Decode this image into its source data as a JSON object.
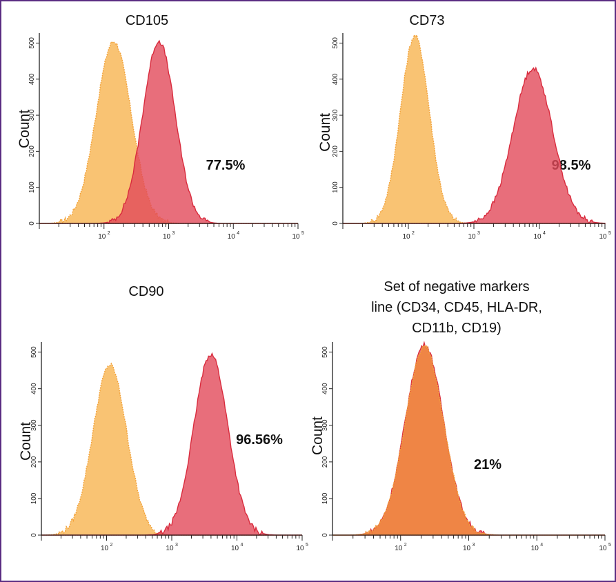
{
  "chart_data": [
    {
      "type": "area",
      "title": "CD105",
      "ylabel": "Count",
      "xscale": "log",
      "xlim": [
        10,
        100000
      ],
      "ylim": [
        0,
        520
      ],
      "x_ticks": [
        "10",
        "2",
        "10",
        "3",
        "10",
        "4",
        "10",
        "5"
      ],
      "y_ticks": [
        "0",
        "100",
        "200",
        "300",
        "400",
        "500"
      ],
      "annotation": "77.5%",
      "series": [
        {
          "role": "control",
          "color": "#f8b95a",
          "center_log": 2.15,
          "width": 0.27,
          "peak": 505
        },
        {
          "role": "stained",
          "color": "#e24a5a",
          "center_log": 2.85,
          "width": 0.25,
          "peak": 505
        }
      ]
    },
    {
      "type": "area",
      "title": "CD73",
      "ylabel": "Count",
      "xscale": "log",
      "xlim": [
        10,
        100000
      ],
      "ylim": [
        0,
        520
      ],
      "x_ticks": [
        "10",
        "2",
        "10",
        "3",
        "10",
        "4",
        "10",
        "5"
      ],
      "y_ticks": [
        "0",
        "100",
        "200",
        "300",
        "400",
        "500"
      ],
      "annotation": "98.5%",
      "series": [
        {
          "role": "control",
          "color": "#f8b95a",
          "center_log": 2.1,
          "width": 0.22,
          "peak": 520
        },
        {
          "role": "stained",
          "color": "#e24a5a",
          "center_log": 3.9,
          "width": 0.3,
          "peak": 430
        }
      ]
    },
    {
      "type": "area",
      "title": "CD90",
      "ylabel": "Count",
      "xscale": "log",
      "xlim": [
        10,
        100000
      ],
      "ylim": [
        0,
        520
      ],
      "x_ticks": [
        "10",
        "2",
        "10",
        "3",
        "10",
        "4",
        "10",
        "5"
      ],
      "y_ticks": [
        "0",
        "100",
        "200",
        "300",
        "400",
        "500"
      ],
      "annotation": "96.56%",
      "series": [
        {
          "role": "control",
          "color": "#f8b95a",
          "center_log": 2.05,
          "width": 0.26,
          "peak": 465
        },
        {
          "role": "stained",
          "color": "#e24a5a",
          "center_log": 3.6,
          "width": 0.26,
          "peak": 495
        }
      ]
    },
    {
      "type": "area",
      "title": "Set of negative markers\nline (CD34, CD45, HLA-DR,\nCD11b, CD19)",
      "title_lines": [
        "Set of negative markers",
        "line (CD34, CD45, HLA-DR,",
        "CD11b, CD19)"
      ],
      "ylabel": "Count",
      "xscale": "log",
      "xlim": [
        10,
        100000
      ],
      "ylim": [
        0,
        520
      ],
      "x_ticks": [
        "10",
        "2",
        "10",
        "3",
        "10",
        "4",
        "10",
        "5"
      ],
      "y_ticks": [
        "0",
        "100",
        "200",
        "300",
        "400",
        "500"
      ],
      "annotation": "21%",
      "series": [
        {
          "role": "stained",
          "color": "#e24a5a",
          "center_log": 2.35,
          "width": 0.28,
          "peak": 520
        },
        {
          "role": "control",
          "color": "#f08a3c",
          "center_log": 2.35,
          "width": 0.28,
          "peak": 515
        }
      ]
    }
  ]
}
